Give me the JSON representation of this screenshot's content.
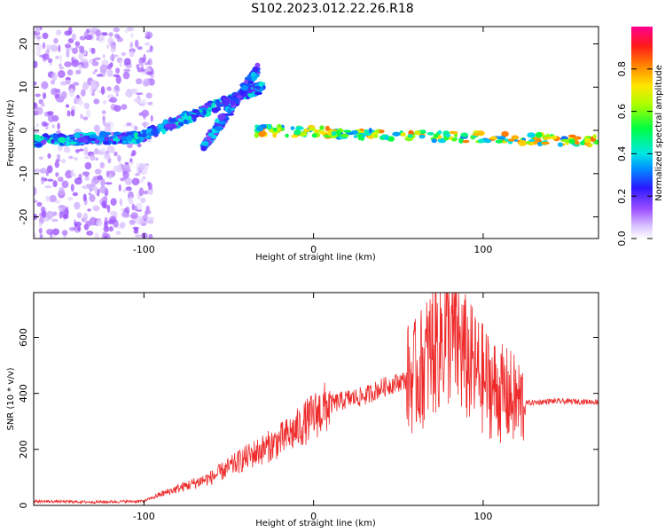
{
  "title": "S102.2023.012.22.26.R18",
  "chart_data": [
    {
      "type": "heatmap",
      "xlabel": "Height of straight line (km)",
      "ylabel": "Frequency (Hz)",
      "xlim": [
        -165,
        168
      ],
      "ylim": [
        -25,
        24
      ],
      "xticks": [
        -100,
        0,
        100
      ],
      "yticks": [
        -20,
        -10,
        0,
        10,
        20
      ],
      "colorbar": {
        "label": "Normalized spectral amplitude",
        "range": [
          0,
          1
        ],
        "ticks": [
          0.0,
          0.2,
          0.4,
          0.6,
          0.8
        ]
      },
      "features": [
        {
          "x": [
            -165,
            -100
          ],
          "y": [
            -2.5,
            -1.5
          ],
          "amp": 0.45
        },
        {
          "x": [
            -100,
            -30
          ],
          "y": [
            -1,
            10
          ],
          "amp": 0.45
        },
        {
          "x": [
            -65,
            -33
          ],
          "y": [
            -4,
            14
          ],
          "amp": 0.4
        },
        {
          "x": [
            -35,
            168
          ],
          "y": [
            0,
            -2.5
          ],
          "amp": 0.85
        }
      ]
    },
    {
      "type": "line",
      "xlabel": "Height of straight line (km)",
      "ylabel": "SNR (10 * v/v)",
      "xlim": [
        -165,
        168
      ],
      "ylim": [
        0,
        760
      ],
      "xticks": [
        -100,
        0,
        100
      ],
      "yticks": [
        0,
        200,
        400,
        600
      ],
      "color": "#ee2a2a",
      "series": [
        {
          "x": [
            -165,
            -130,
            -100,
            -90,
            -80,
            -60,
            -40,
            -30,
            -20,
            -10,
            0,
            10,
            20,
            30,
            40,
            50,
            60,
            65,
            70,
            75,
            80,
            85,
            90,
            100,
            110,
            115,
            120,
            125,
            140,
            168
          ],
          "y": [
            15,
            12,
            15,
            40,
            60,
            100,
            170,
            200,
            230,
            270,
            320,
            360,
            380,
            390,
            420,
            440,
            460,
            500,
            560,
            600,
            620,
            580,
            520,
            450,
            400,
            390,
            370,
            365,
            372,
            370
          ]
        }
      ]
    }
  ]
}
